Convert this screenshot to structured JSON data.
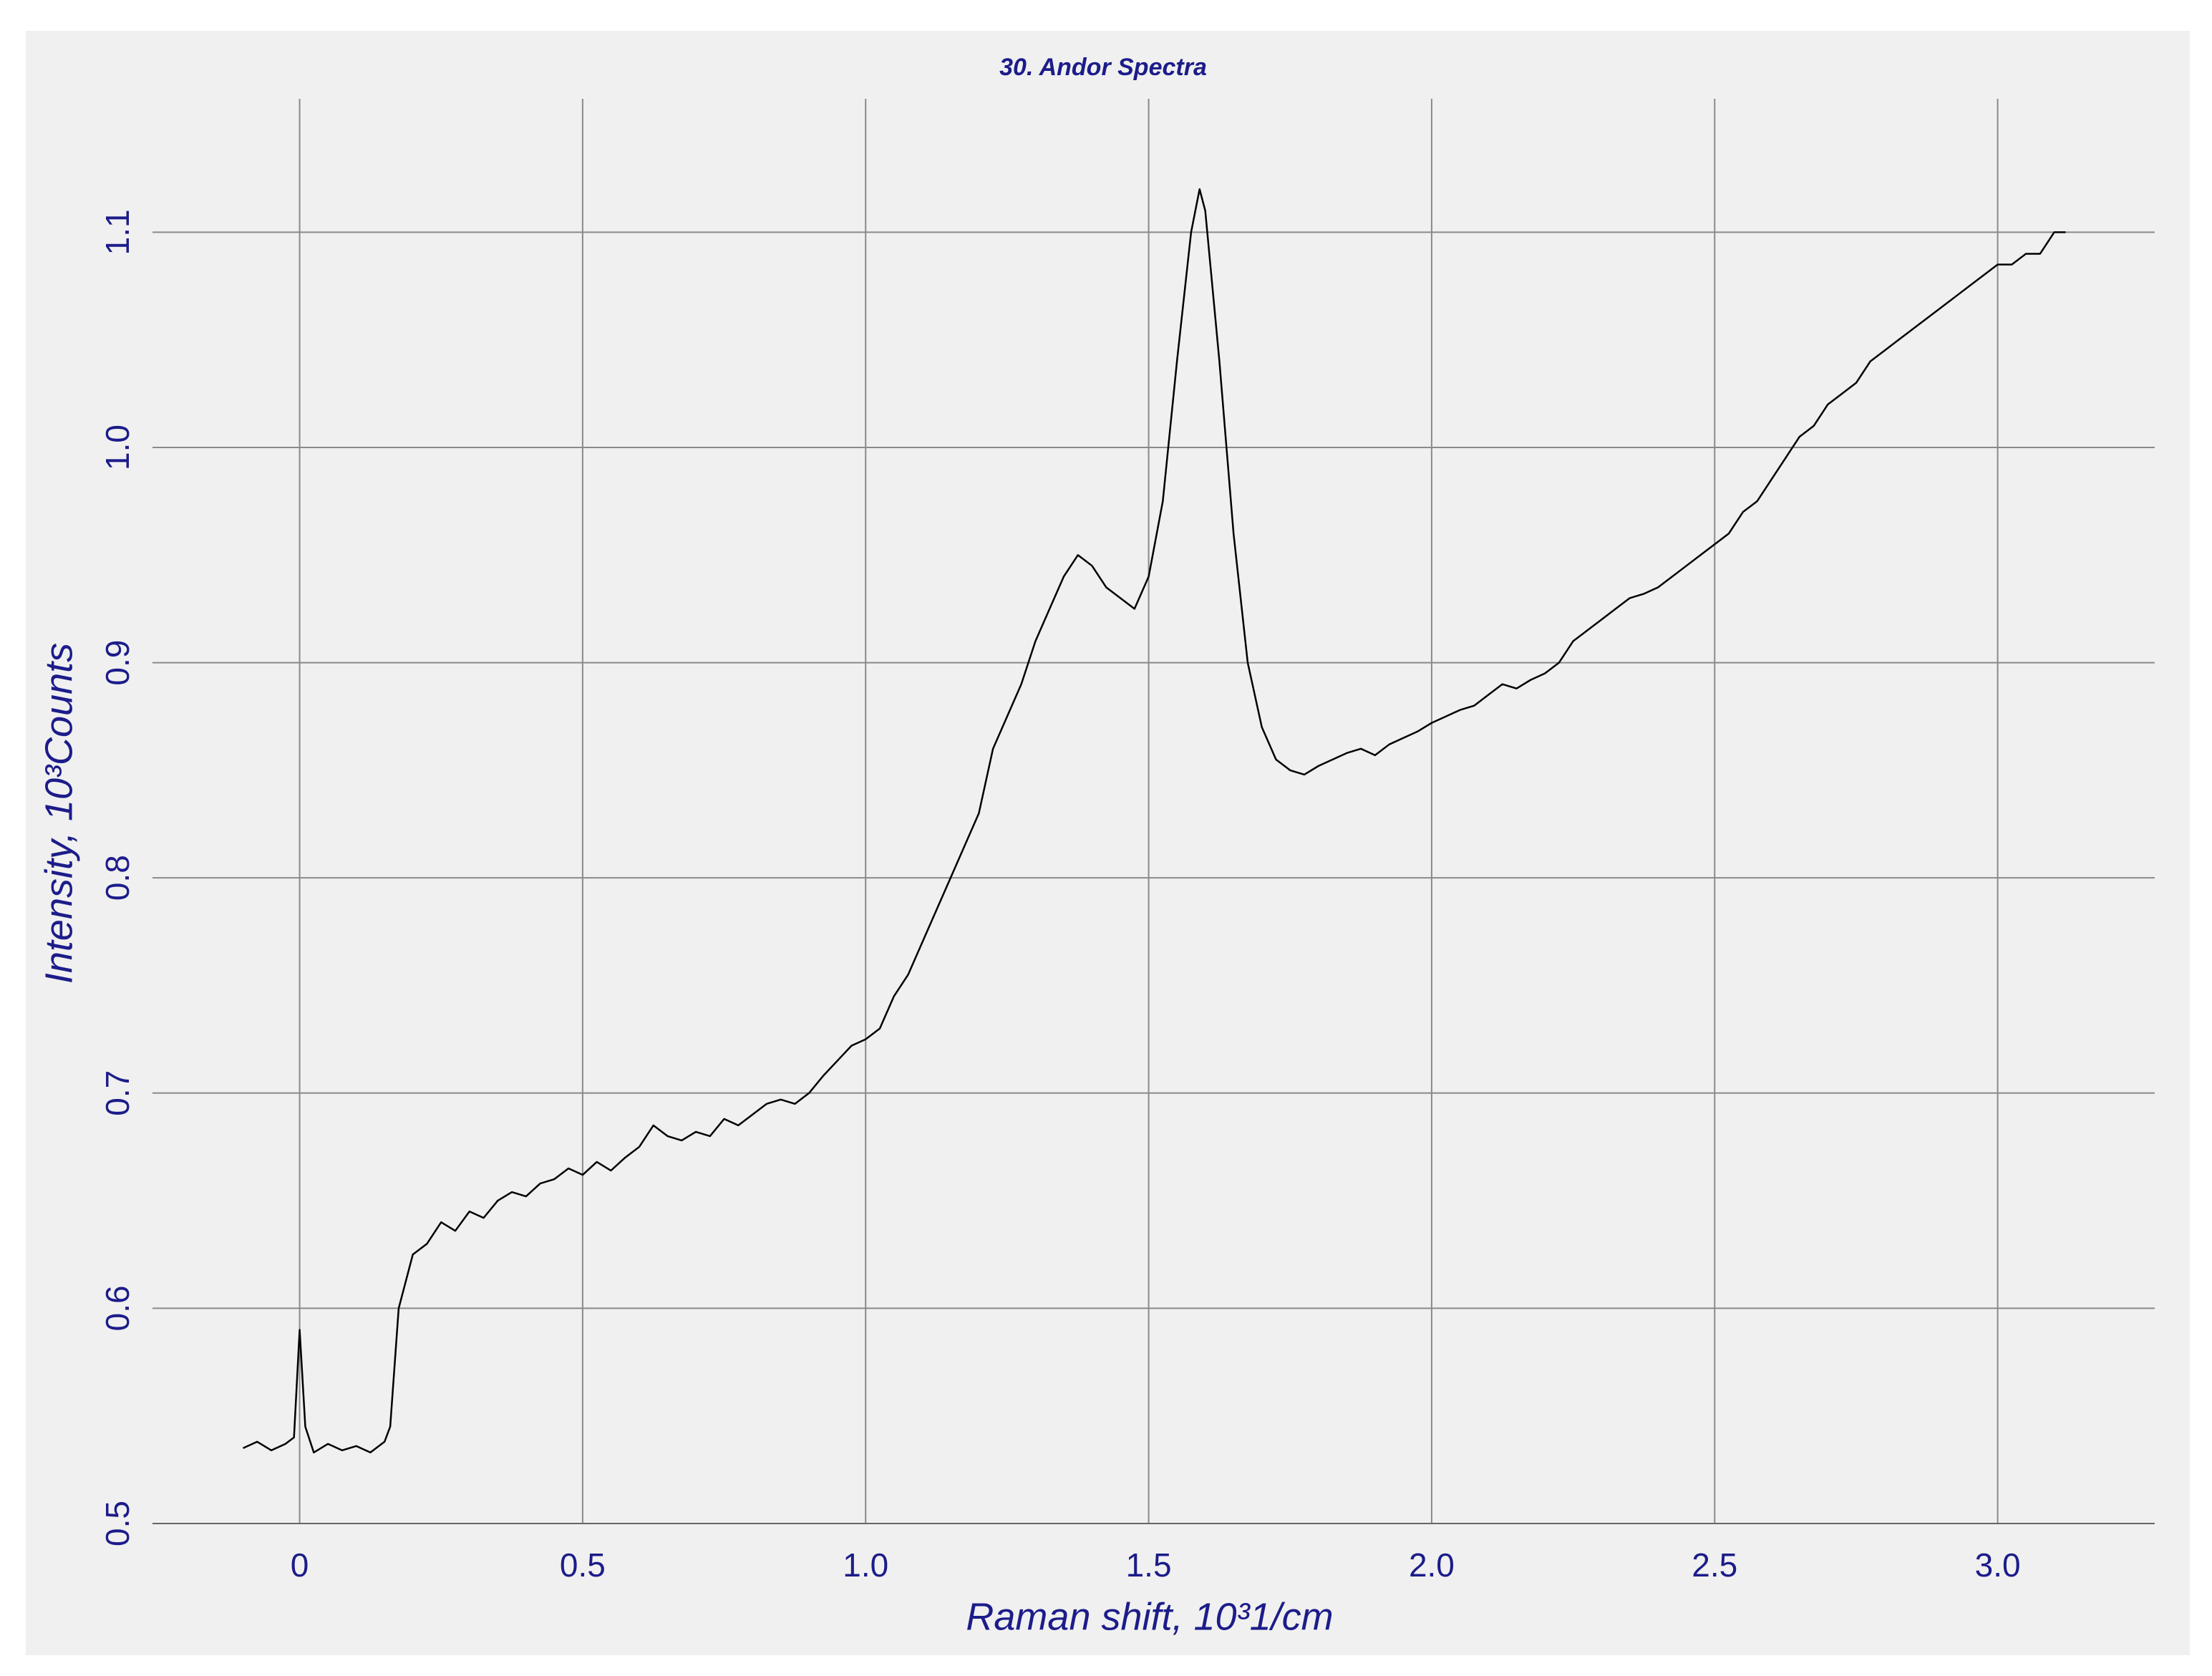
{
  "chart_data": {
    "type": "line",
    "title": "30. Andor Spectra",
    "x_label": "Raman shift, 10³1/cm",
    "y_label": "Intensity, 10³Counts",
    "x": [
      -0.1,
      -0.075,
      -0.05,
      -0.025,
      -0.01,
      0,
      0.01,
      0.025,
      0.05,
      0.075,
      0.1,
      0.125,
      0.15,
      0.16,
      0.175,
      0.2,
      0.225,
      0.25,
      0.275,
      0.3,
      0.325,
      0.35,
      0.375,
      0.4,
      0.425,
      0.45,
      0.475,
      0.5,
      0.525,
      0.55,
      0.575,
      0.6,
      0.625,
      0.65,
      0.675,
      0.7,
      0.725,
      0.75,
      0.775,
      0.8,
      0.825,
      0.85,
      0.875,
      0.9,
      0.925,
      0.95,
      0.975,
      1.0,
      1.025,
      1.05,
      1.075,
      1.1,
      1.125,
      1.15,
      1.175,
      1.2,
      1.225,
      1.25,
      1.275,
      1.3,
      1.325,
      1.35,
      1.375,
      1.4,
      1.425,
      1.45,
      1.475,
      1.5,
      1.525,
      1.55,
      1.575,
      1.59,
      1.6,
      1.625,
      1.65,
      1.675,
      1.7,
      1.725,
      1.75,
      1.775,
      1.8,
      1.825,
      1.85,
      1.875,
      1.9,
      1.925,
      1.95,
      1.975,
      2.0,
      2.025,
      2.05,
      2.075,
      2.1,
      2.125,
      2.15,
      2.175,
      2.2,
      2.225,
      2.25,
      2.275,
      2.3,
      2.325,
      2.35,
      2.375,
      2.4,
      2.425,
      2.45,
      2.475,
      2.5,
      2.525,
      2.55,
      2.575,
      2.6,
      2.625,
      2.65,
      2.675,
      2.7,
      2.725,
      2.75,
      2.775,
      2.8,
      2.825,
      2.85,
      2.875,
      2.9,
      2.925,
      2.95,
      2.975,
      3.0,
      3.025,
      3.05,
      3.075,
      3.1,
      3.12
    ],
    "values": [
      0.535,
      0.538,
      0.534,
      0.537,
      0.54,
      0.59,
      0.545,
      0.533,
      0.537,
      0.534,
      0.536,
      0.533,
      0.538,
      0.545,
      0.6,
      0.625,
      0.63,
      0.64,
      0.636,
      0.645,
      0.642,
      0.65,
      0.654,
      0.652,
      0.658,
      0.66,
      0.665,
      0.662,
      0.668,
      0.664,
      0.67,
      0.675,
      0.685,
      0.68,
      0.678,
      0.682,
      0.68,
      0.688,
      0.685,
      0.69,
      0.695,
      0.697,
      0.695,
      0.7,
      0.708,
      0.715,
      0.722,
      0.725,
      0.73,
      0.745,
      0.755,
      0.77,
      0.785,
      0.8,
      0.815,
      0.83,
      0.86,
      0.875,
      0.89,
      0.91,
      0.925,
      0.94,
      0.95,
      0.945,
      0.935,
      0.93,
      0.925,
      0.94,
      0.975,
      1.04,
      1.1,
      1.12,
      1.11,
      1.04,
      0.96,
      0.9,
      0.87,
      0.855,
      0.85,
      0.848,
      0.852,
      0.855,
      0.858,
      0.86,
      0.857,
      0.862,
      0.865,
      0.868,
      0.872,
      0.875,
      0.878,
      0.88,
      0.885,
      0.89,
      0.888,
      0.892,
      0.895,
      0.9,
      0.91,
      0.915,
      0.92,
      0.925,
      0.93,
      0.932,
      0.935,
      0.94,
      0.945,
      0.95,
      0.955,
      0.96,
      0.97,
      0.975,
      0.985,
      0.995,
      1.005,
      1.01,
      1.02,
      1.025,
      1.03,
      1.04,
      1.045,
      1.05,
      1.055,
      1.06,
      1.065,
      1.07,
      1.075,
      1.08,
      1.085,
      1.085,
      1.09,
      1.09,
      1.1,
      1.1
    ],
    "color": "#000000",
    "xlim": [
      -0.26,
      3.2775
    ],
    "ylim": [
      0.5,
      1.162
    ],
    "xticks": [
      0,
      0.5,
      {
        "value": 1,
        "label": "1.0"
      },
      1.5,
      {
        "value": 2,
        "label": "2.0"
      },
      2.5,
      {
        "value": 3,
        "label": "3.0"
      }
    ],
    "yticks": [
      0.5,
      0.6,
      0.7,
      0.8,
      0.9,
      {
        "value": 1,
        "label": "1.0"
      },
      1.1
    ],
    "grid": true
  }
}
